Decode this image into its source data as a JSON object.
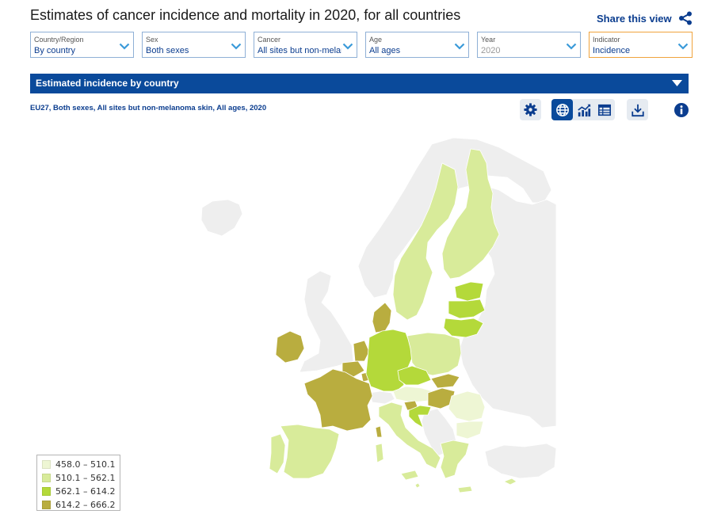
{
  "page": {
    "title": "Estimates of cancer incidence and mortality in 2020, for all countries",
    "share_label": "Share this view"
  },
  "filters": [
    {
      "label": "Country/Region",
      "value": "By country",
      "disabled": false
    },
    {
      "label": "Sex",
      "value": "Both sexes",
      "disabled": false
    },
    {
      "label": "Cancer",
      "value": "All sites but non-melanoma skin",
      "disabled": false
    },
    {
      "label": "Age",
      "value": "All ages",
      "disabled": false
    },
    {
      "label": "Year",
      "value": "2020",
      "disabled": true
    },
    {
      "label": "Indicator",
      "value": "Incidence",
      "disabled": false
    }
  ],
  "panel": {
    "title": "Estimated incidence by country",
    "subtitle": "EU27, Both sexes, All sites but non-melanoma skin, All ages, 2020"
  },
  "toolbar": {
    "settings_icon": "gear-icon",
    "views": [
      {
        "icon": "globe-icon",
        "active": true
      },
      {
        "icon": "trend-chart-icon",
        "active": false
      },
      {
        "icon": "table-icon",
        "active": false
      }
    ],
    "download_icon": "download-icon",
    "info_icon": "info-icon"
  },
  "colors": {
    "accent": "#0a4a9b",
    "link": "#0b3d8f",
    "indicator_border": "#f0a33c",
    "no_data": "#eeeeee",
    "class_1": "#eef6d4",
    "class_2": "#d8eb9a",
    "class_3": "#b4d93a",
    "class_4": "#b9ad3f"
  },
  "legend": [
    {
      "range": "458.0 – 510.1",
      "color": "#eef6d4"
    },
    {
      "range": "510.1 – 562.1",
      "color": "#d8eb9a"
    },
    {
      "range": "562.1 – 614.2",
      "color": "#b4d93a"
    },
    {
      "range": "614.2 – 666.2",
      "color": "#b9ad3f"
    }
  ]
}
